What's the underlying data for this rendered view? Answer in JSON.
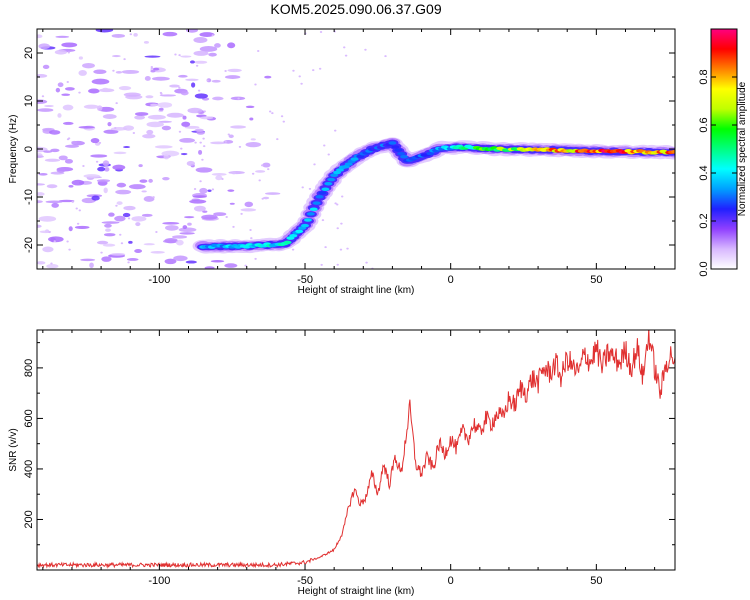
{
  "title": "KOM5.2025.090.06.37.G09",
  "colorbar_colors": [
    "#ffffff",
    "#d8b8ff",
    "#9040ff",
    "#2020ff",
    "#00a0ff",
    "#00ffff",
    "#00ff80",
    "#00ff00",
    "#c0ff00",
    "#ffff00",
    "#ff8000",
    "#ff0000",
    "#ff0080"
  ],
  "line_color": "#e03030",
  "chart_data": [
    {
      "type": "heatmap",
      "xlabel": "Height of straight line (km)",
      "ylabel": "Frequency (Hz)",
      "xlim": [
        -142,
        77
      ],
      "ylim": [
        -25,
        25
      ],
      "xticks": [
        -100,
        -50,
        0,
        50
      ],
      "xtick_labels": [
        "-100",
        "-50",
        "0",
        "50"
      ],
      "yticks": [
        -20,
        -10,
        0,
        10,
        20
      ],
      "ytick_labels": [
        "-20",
        "-10",
        "0",
        "10",
        "20"
      ],
      "colorbar": {
        "label": "Normalized spectral amplitude",
        "range": [
          0,
          1
        ],
        "ticks": [
          0,
          0.2,
          0.4,
          0.6,
          0.8
        ],
        "tick_labels": [
          "0.0",
          "0.2",
          "0.4",
          "0.6",
          "0.8"
        ]
      },
      "ridge": [
        {
          "x": -85,
          "y": -20.3,
          "a": 0.35
        },
        {
          "x": -70,
          "y": -20.2,
          "a": 0.4
        },
        {
          "x": -57,
          "y": -19.8,
          "a": 0.45
        },
        {
          "x": -50,
          "y": -16,
          "a": 0.4
        },
        {
          "x": -45,
          "y": -10,
          "a": 0.35
        },
        {
          "x": -40,
          "y": -5.5,
          "a": 0.35
        },
        {
          "x": -33,
          "y": -2,
          "a": 0.35
        },
        {
          "x": -27,
          "y": 0,
          "a": 0.3
        },
        {
          "x": -20,
          "y": 1.2,
          "a": 0.3
        },
        {
          "x": -15,
          "y": -2.5,
          "a": 0.3
        },
        {
          "x": -10,
          "y": -1.5,
          "a": 0.3
        },
        {
          "x": -3,
          "y": 0.2,
          "a": 0.35
        },
        {
          "x": 5,
          "y": 0.4,
          "a": 0.5
        },
        {
          "x": 15,
          "y": 0,
          "a": 0.65
        },
        {
          "x": 25,
          "y": -0.1,
          "a": 0.65
        },
        {
          "x": 35,
          "y": -0.2,
          "a": 0.85
        },
        {
          "x": 45,
          "y": -0.4,
          "a": 0.85
        },
        {
          "x": 55,
          "y": -0.5,
          "a": 0.95
        },
        {
          "x": 65,
          "y": -0.6,
          "a": 0.95
        },
        {
          "x": 77,
          "y": -0.7,
          "a": 0.9
        }
      ],
      "noise_region": {
        "x_range": [
          -142,
          -55
        ],
        "y_range": [
          -25,
          25
        ]
      }
    },
    {
      "type": "line",
      "xlabel": "Height of straight line (km)",
      "ylabel": "SNR (v/v)",
      "xlim": [
        -142,
        77
      ],
      "ylim": [
        0,
        950
      ],
      "xticks": [
        -100,
        -50,
        0,
        50
      ],
      "xtick_labels": [
        "-100",
        "-50",
        "0",
        "50"
      ],
      "yticks": [
        200,
        400,
        600,
        800
      ],
      "ytick_labels": [
        "200",
        "400",
        "600",
        "800"
      ],
      "series": [
        {
          "x": [
            -142,
            -120,
            -100,
            -80,
            -60,
            -50,
            -45,
            -40,
            -37,
            -35,
            -33,
            -31,
            -29,
            -27,
            -25,
            -23,
            -21,
            -19,
            -17,
            -15,
            -14,
            -12,
            -10,
            -8,
            -6,
            -4,
            -2,
            0,
            2,
            4,
            6,
            8,
            10,
            12,
            14,
            16,
            18,
            20,
            22,
            24,
            26,
            28,
            30,
            32,
            34,
            36,
            38,
            40,
            42,
            44,
            46,
            48,
            50,
            52,
            54,
            56,
            58,
            60,
            62,
            64,
            66,
            68,
            70,
            72,
            74,
            76,
            77
          ],
          "y": [
            20,
            20,
            20,
            20,
            20,
            30,
            50,
            80,
            150,
            250,
            320,
            260,
            290,
            380,
            300,
            420,
            340,
            450,
            380,
            560,
            640,
            420,
            380,
            450,
            400,
            500,
            460,
            520,
            480,
            550,
            520,
            580,
            540,
            600,
            580,
            620,
            600,
            680,
            650,
            720,
            700,
            760,
            740,
            800,
            780,
            820,
            760,
            840,
            800,
            780,
            860,
            820,
            880,
            800,
            860,
            840,
            820,
            870,
            800,
            880,
            760,
            940,
            800,
            700,
            820,
            860,
            800
          ]
        }
      ]
    }
  ]
}
